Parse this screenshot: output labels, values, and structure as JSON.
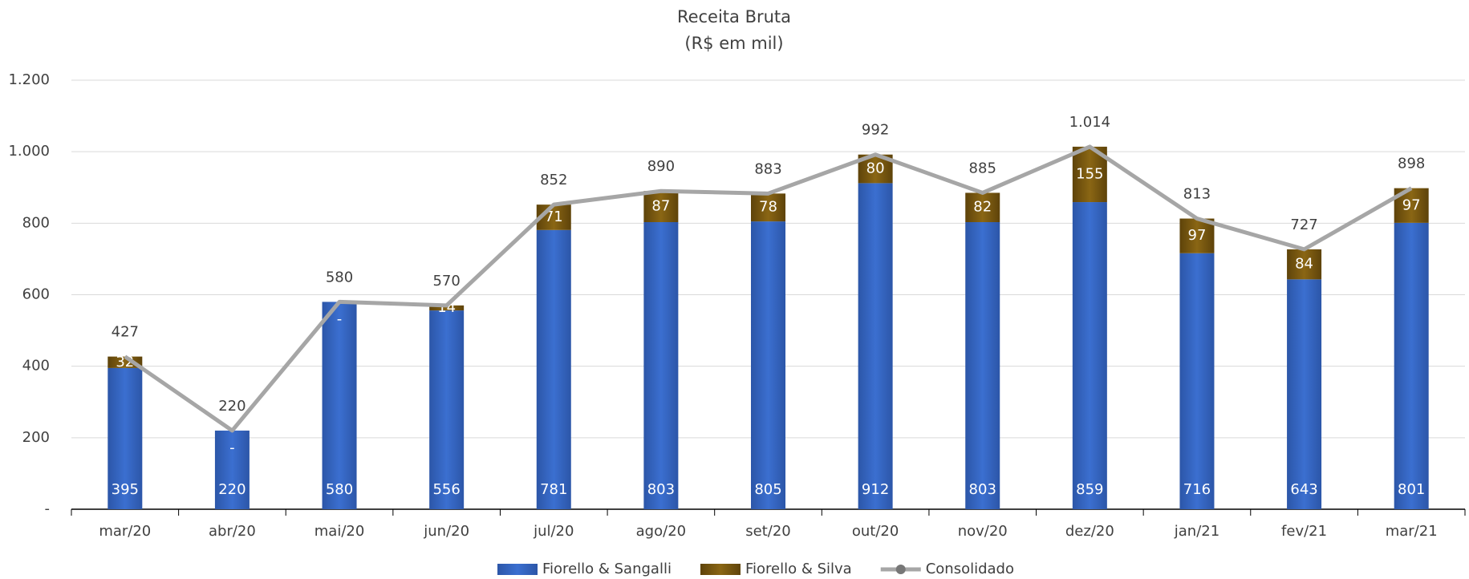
{
  "chart_data": {
    "type": "bar",
    "stacked": true,
    "title": "Receita Bruta",
    "subtitle": "(R$ em mil)",
    "categories": [
      "mar/20",
      "abr/20",
      "mai/20",
      "jun/20",
      "jul/20",
      "ago/20",
      "set/20",
      "out/20",
      "nov/20",
      "dez/20",
      "jan/21",
      "fev/21",
      "mar/21"
    ],
    "series": [
      {
        "name": "Fiorello & Sangalli",
        "color": "#3b6fd0",
        "values": [
          395,
          220,
          580,
          556,
          781,
          803,
          805,
          912,
          803,
          859,
          716,
          643,
          801
        ]
      },
      {
        "name": "Fiorello & Silva",
        "color": "#7d5b0f",
        "values": [
          32,
          0,
          0,
          14,
          71,
          87,
          78,
          80,
          82,
          155,
          97,
          84,
          97
        ],
        "value_labels": [
          "32",
          "-",
          "-",
          "14",
          "71",
          "87",
          "78",
          "80",
          "82",
          "155",
          "97",
          "84",
          "97"
        ]
      },
      {
        "name": "Consolidado",
        "type": "line",
        "color": "#a6a6a6",
        "values": [
          427,
          220,
          580,
          570,
          852,
          890,
          883,
          992,
          885,
          1014,
          813,
          727,
          898
        ],
        "value_labels": [
          "427",
          "220",
          "580",
          "570",
          "852",
          "890",
          "883",
          "992",
          "885",
          "1.014",
          "813",
          "727",
          "898"
        ]
      }
    ],
    "ylim": [
      0,
      1200
    ],
    "yticks": [
      {
        "value": 0,
        "label": "-"
      },
      200,
      400,
      600,
      800,
      {
        "value": 1000,
        "label": "1.000"
      },
      {
        "value": 1200,
        "label": "1.200"
      }
    ],
    "grid": true,
    "legend": "bottom"
  }
}
